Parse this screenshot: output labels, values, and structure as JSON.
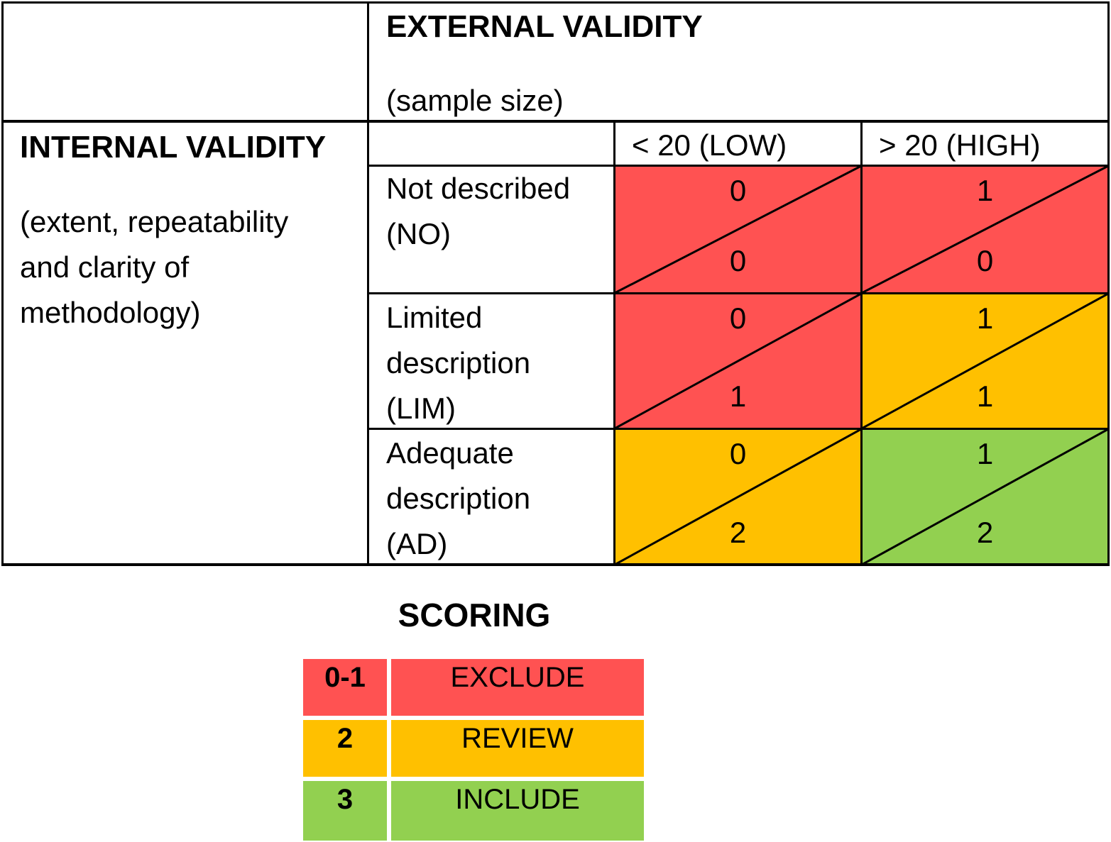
{
  "matrix": {
    "external": {
      "title": "EXTERNAL VALIDITY",
      "subtitle": "(sample size)",
      "columns": [
        "< 20 (LOW)",
        "> 20 (HIGH)"
      ]
    },
    "internal": {
      "title": "INTERNAL VALIDITY",
      "subtitle_lines": [
        "(extent, repeatability",
        "and clarity of",
        "methodology)"
      ]
    },
    "rows": [
      {
        "label_lines": [
          "Not described",
          "(NO)"
        ],
        "cells": [
          {
            "top": "0",
            "bottom": "0",
            "color": "#ff5252"
          },
          {
            "top": "1",
            "bottom": "0",
            "color": "#ff5252"
          }
        ]
      },
      {
        "label_lines": [
          "Limited",
          "description",
          "(LIM)"
        ],
        "cells": [
          {
            "top": "0",
            "bottom": "1",
            "color": "#ff5252"
          },
          {
            "top": "1",
            "bottom": "1",
            "color": "#ffc000"
          }
        ]
      },
      {
        "label_lines": [
          "Adequate",
          "description",
          "(AD)"
        ],
        "cells": [
          {
            "top": "0",
            "bottom": "2",
            "color": "#ffc000"
          },
          {
            "top": "1",
            "bottom": "2",
            "color": "#92d050"
          }
        ]
      }
    ]
  },
  "scoring": {
    "title": "SCORING",
    "items": [
      {
        "key": "0-1",
        "label": "EXCLUDE",
        "color": "#ff5252"
      },
      {
        "key": "2",
        "label": "REVIEW",
        "color": "#ffc000"
      },
      {
        "key": "3",
        "label": "INCLUDE",
        "color": "#92d050"
      }
    ]
  }
}
